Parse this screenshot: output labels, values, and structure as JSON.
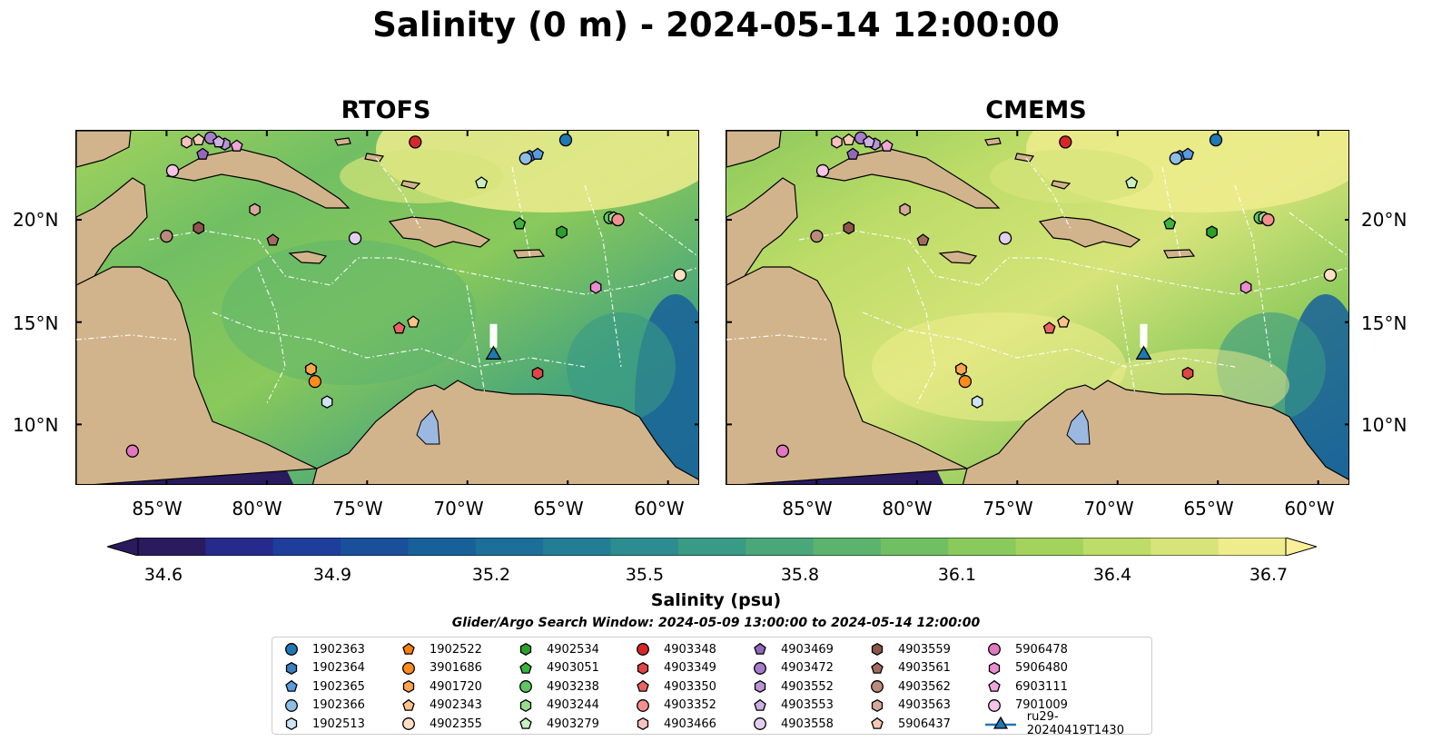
{
  "title": "Salinity (0 m) - 2024-05-14 12:00:00",
  "panels": [
    {
      "name": "RTOFS"
    },
    {
      "name": "CMEMS"
    }
  ],
  "lat_ticks": [
    "20°N",
    "15°N",
    "10°N"
  ],
  "lon_ticks": [
    "85°W",
    "80°W",
    "75°W",
    "70°W",
    "65°W",
    "60°W"
  ],
  "colorbar": {
    "label": "Salinity (psu)",
    "ticks": [
      "34.6",
      "34.9",
      "35.2",
      "35.5",
      "35.8",
      "36.1",
      "36.4",
      "36.7"
    ],
    "min": 34.6,
    "max": 36.7,
    "colors": [
      "#2a1a5e",
      "#262a8c",
      "#1f3d9b",
      "#1a4f9a",
      "#18609a",
      "#1c6f98",
      "#237d95",
      "#2d8c8f",
      "#399a85",
      "#49a77a",
      "#5cb36e",
      "#71bf63",
      "#8ac95b",
      "#a3d35d",
      "#bddc68",
      "#d6e47a",
      "#efec8d"
    ],
    "under_color": "#2a1a5e",
    "over_color": "#fbf09a"
  },
  "search_window": "Glider/Argo Search Window: 2024-05-09 13:00:00 to 2024-05-14 12:00:00",
  "land_color": "#d2b48c",
  "legend": [
    {
      "label": "1902363",
      "marker": "circle",
      "color": "#1f77b4"
    },
    {
      "label": "1902364",
      "marker": "hexagon",
      "color": "#3a7fc0"
    },
    {
      "label": "1902365",
      "marker": "pentagon",
      "color": "#5a9be0"
    },
    {
      "label": "1902366",
      "marker": "circle",
      "color": "#8ebde6"
    },
    {
      "label": "1902513",
      "marker": "hexagon",
      "color": "#cfe3f7"
    },
    {
      "label": "1902522",
      "marker": "pentagon",
      "color": "#ff7f0e"
    },
    {
      "label": "3901686",
      "marker": "circle",
      "color": "#ff8c1a"
    },
    {
      "label": "4901720",
      "marker": "hexagon",
      "color": "#ffa54f"
    },
    {
      "label": "4902343",
      "marker": "pentagon",
      "color": "#ffc388"
    },
    {
      "label": "4902355",
      "marker": "circle",
      "color": "#ffe0c2"
    },
    {
      "label": "4902534",
      "marker": "hexagon",
      "color": "#2ca02c"
    },
    {
      "label": "4903051",
      "marker": "pentagon",
      "color": "#3cb33c"
    },
    {
      "label": "4903238",
      "marker": "circle",
      "color": "#62c462"
    },
    {
      "label": "4903244",
      "marker": "hexagon",
      "color": "#98dd8e"
    },
    {
      "label": "4903279",
      "marker": "pentagon",
      "color": "#c9f0c0"
    },
    {
      "label": "4903348",
      "marker": "circle",
      "color": "#d62728"
    },
    {
      "label": "4903349",
      "marker": "hexagon",
      "color": "#e04545"
    },
    {
      "label": "4903350",
      "marker": "pentagon",
      "color": "#ea6464"
    },
    {
      "label": "4903352",
      "marker": "circle",
      "color": "#f29090"
    },
    {
      "label": "4903466",
      "marker": "hexagon",
      "color": "#fbc0c0"
    },
    {
      "label": "4903469",
      "marker": "pentagon",
      "color": "#9467bd"
    },
    {
      "label": "4903472",
      "marker": "circle",
      "color": "#a77ccb"
    },
    {
      "label": "4903552",
      "marker": "hexagon",
      "color": "#b894d6"
    },
    {
      "label": "4903553",
      "marker": "pentagon",
      "color": "#cbb0e3"
    },
    {
      "label": "4903558",
      "marker": "circle",
      "color": "#e1cff0"
    },
    {
      "label": "4903559",
      "marker": "hexagon",
      "color": "#8c564b"
    },
    {
      "label": "4903561",
      "marker": "pentagon",
      "color": "#a26b5e"
    },
    {
      "label": "4903562",
      "marker": "circle",
      "color": "#bb8a7c"
    },
    {
      "label": "4903563",
      "marker": "hexagon",
      "color": "#d6a99c"
    },
    {
      "label": "5906437",
      "marker": "pentagon",
      "color": "#f5c9b6"
    },
    {
      "label": "5906478",
      "marker": "circle",
      "color": "#e377c2"
    },
    {
      "label": "5906480",
      "marker": "hexagon",
      "color": "#ea8dce"
    },
    {
      "label": "6903111",
      "marker": "pentagon",
      "color": "#f0a6da"
    },
    {
      "label": "7901009",
      "marker": "circle",
      "color": "#f7c4e8"
    },
    {
      "label": "ru29-20240419T1430",
      "marker": "triangle",
      "color": "#1f77b4"
    }
  ],
  "floats": [
    {
      "id": "1902363",
      "lon": -65.1,
      "lat": 23.9
    },
    {
      "id": "1902364",
      "lon": -66.9,
      "lat": 23.1
    },
    {
      "id": "1902365",
      "lon": -66.5,
      "lat": 23.2
    },
    {
      "id": "1902366",
      "lon": -67.1,
      "lat": 23.0
    },
    {
      "id": "1902513",
      "lon": -77.0,
      "lat": 11.1
    },
    {
      "id": "1902522",
      "lon": -77.8,
      "lat": 12.7
    },
    {
      "id": "3901686",
      "lon": -77.6,
      "lat": 12.1
    },
    {
      "id": "4901720",
      "lon": -77.8,
      "lat": 12.7
    },
    {
      "id": "4902343",
      "lon": -72.7,
      "lat": 15.0
    },
    {
      "id": "4902355",
      "lon": -59.4,
      "lat": 17.3
    },
    {
      "id": "4902534",
      "lon": -65.3,
      "lat": 19.4
    },
    {
      "id": "4903051",
      "lon": -67.4,
      "lat": 19.8
    },
    {
      "id": "4903238",
      "lon": -62.9,
      "lat": 20.1
    },
    {
      "id": "4903244",
      "lon": -62.7,
      "lat": 20.1
    },
    {
      "id": "4903279",
      "lon": -69.3,
      "lat": 21.8
    },
    {
      "id": "4903348",
      "lon": -72.6,
      "lat": 23.8
    },
    {
      "id": "4903349",
      "lon": -66.5,
      "lat": 12.5
    },
    {
      "id": "4903350",
      "lon": -73.4,
      "lat": 14.7
    },
    {
      "id": "4903352",
      "lon": -62.5,
      "lat": 20.0
    },
    {
      "id": "4903466",
      "lon": -84.0,
      "lat": 23.8
    },
    {
      "id": "4903469",
      "lon": -83.2,
      "lat": 23.2
    },
    {
      "id": "4903472",
      "lon": -82.8,
      "lat": 24.0
    },
    {
      "id": "4903552",
      "lon": -82.1,
      "lat": 23.7
    },
    {
      "id": "4903553",
      "lon": -82.4,
      "lat": 23.8
    },
    {
      "id": "4903558",
      "lon": -75.6,
      "lat": 19.1
    },
    {
      "id": "4903559",
      "lon": -83.4,
      "lat": 19.6
    },
    {
      "id": "4903561",
      "lon": -79.7,
      "lat": 19.0
    },
    {
      "id": "4903562",
      "lon": -85.0,
      "lat": 19.2
    },
    {
      "id": "4903563",
      "lon": -80.6,
      "lat": 20.5
    },
    {
      "id": "5906437",
      "lon": -83.4,
      "lat": 23.9
    },
    {
      "id": "5906478",
      "lon": -86.7,
      "lat": 8.7
    },
    {
      "id": "5906480",
      "lon": -63.6,
      "lat": 16.7
    },
    {
      "id": "6903111",
      "lon": -81.5,
      "lat": 23.6
    },
    {
      "id": "7901009",
      "lon": -84.7,
      "lat": 22.4
    },
    {
      "id": "ru29-20240419T1430",
      "lon": -68.7,
      "lat": 13.4
    }
  ]
}
